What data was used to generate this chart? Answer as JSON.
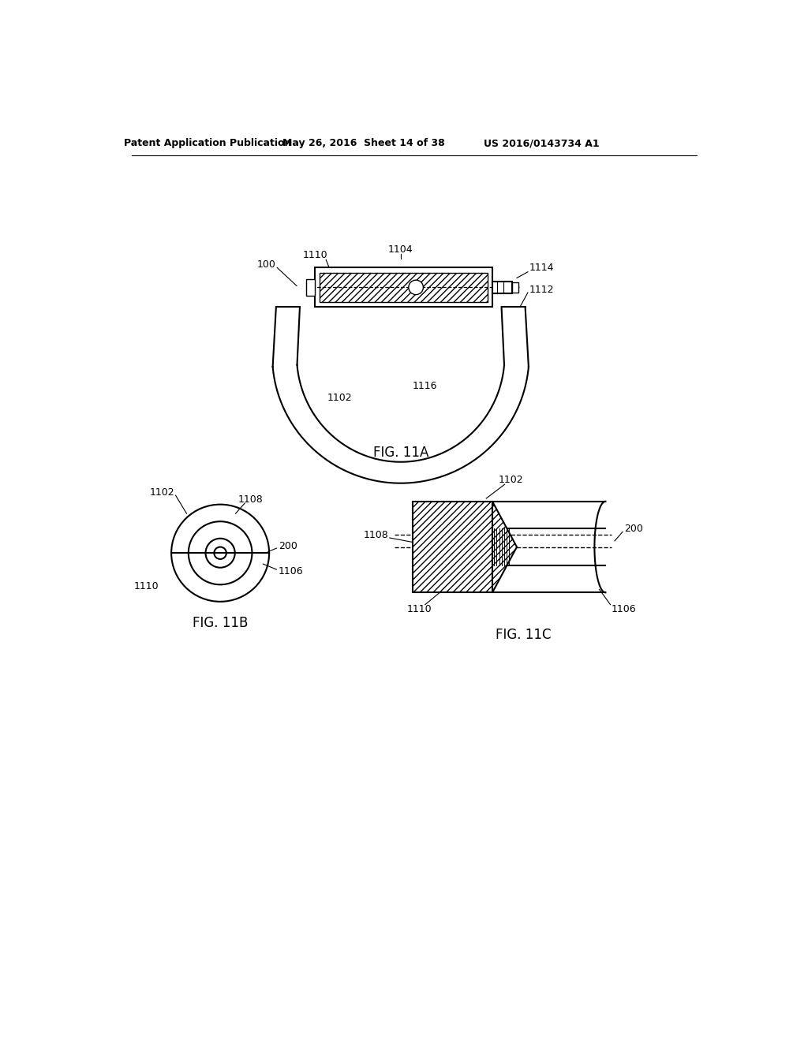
{
  "header_left": "Patent Application Publication",
  "header_mid": "May 26, 2016  Sheet 14 of 38",
  "header_right": "US 2016/0143734 A1",
  "fig11a_label": "FIG. 11A",
  "fig11b_label": "FIG. 11B",
  "fig11c_label": "FIG. 11C",
  "bg_color": "#ffffff",
  "line_color": "#000000"
}
